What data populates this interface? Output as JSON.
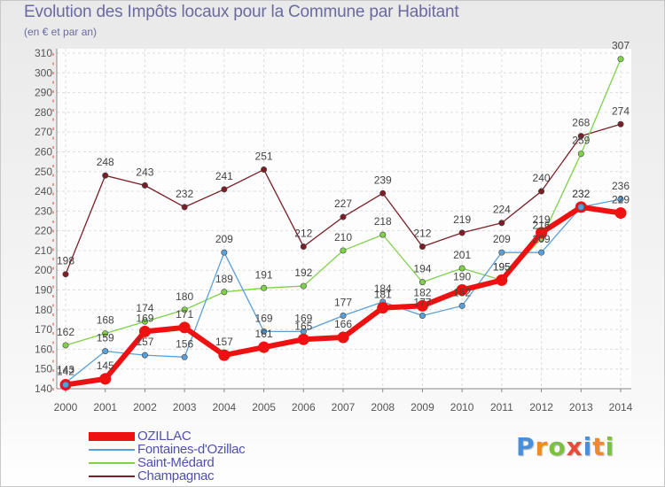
{
  "header": {
    "title": "Evolution des Impôts locaux pour la Commune par Habitant",
    "subtitle": "(en € et par an)"
  },
  "brand": {
    "letters": [
      "P",
      "r",
      "o",
      "x",
      "i",
      "t",
      "i"
    ],
    "colors": [
      "#4a8fd8",
      "#f08a24",
      "#7cc23a",
      "#e84a3a",
      "#4a8fd8",
      "#f08a24",
      "#7cc23a"
    ]
  },
  "chart_data": {
    "type": "line",
    "title": "Evolution des Impôts locaux pour la Commune par Habitant",
    "subtitle": "(en € et par an)",
    "x": [
      2000,
      2001,
      2002,
      2003,
      2004,
      2005,
      2006,
      2007,
      2008,
      2009,
      2010,
      2011,
      2012,
      2013,
      2014
    ],
    "ylim": [
      140,
      310
    ],
    "yticks": [
      140,
      150,
      160,
      170,
      180,
      190,
      200,
      210,
      220,
      230,
      240,
      250,
      260,
      270,
      280,
      290,
      300,
      310
    ],
    "grid": true,
    "legend_position": "bottom-left",
    "series": [
      {
        "name": "Champagnac",
        "color": "#7a1f28",
        "width": 1.3,
        "marker": 3.2,
        "values": [
          198,
          248,
          243,
          232,
          241,
          251,
          212,
          227,
          239,
          212,
          219,
          224,
          240,
          268,
          274
        ]
      },
      {
        "name": "Saint-Médard",
        "color": "#7fd04b",
        "width": 1.3,
        "marker": 3.2,
        "values": [
          162,
          168,
          174,
          180,
          189,
          191,
          192,
          210,
          218,
          194,
          201,
          195,
          216,
          259,
          307
        ]
      },
      {
        "name": "Fontaines-d'Ozillac",
        "color": "#5aa0d8",
        "width": 1.3,
        "marker": 3.2,
        "values": [
          143,
          159,
          157,
          156,
          209,
          169,
          169,
          177,
          184,
          177,
          182,
          209,
          209,
          232,
          236
        ]
      },
      {
        "name": "OZILLAC",
        "color": "#ee1111",
        "width": 6,
        "marker": 6.5,
        "values": [
          142,
          145,
          169,
          171,
          157,
          161,
          165,
          166,
          181,
          182,
          190,
          195,
          219,
          232,
          229
        ]
      }
    ]
  }
}
